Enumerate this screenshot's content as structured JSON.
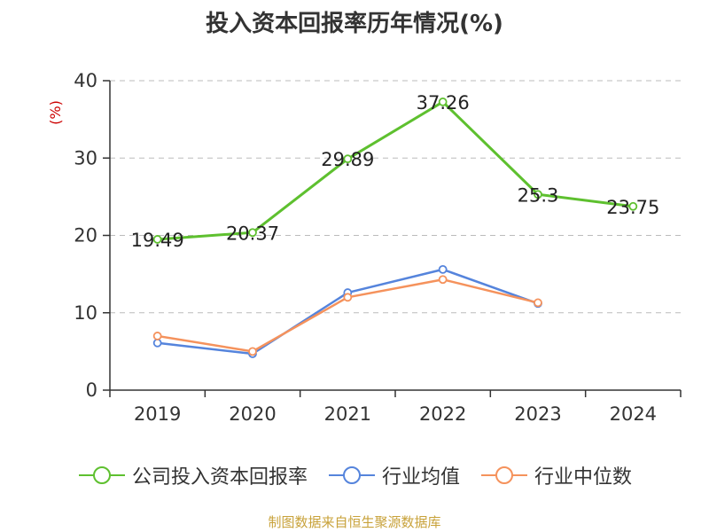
{
  "title": "投入资本回报率历年情况(%)",
  "footer": "制图数据来自恒生聚源数据库",
  "colors": {
    "series0": "#5ec02f",
    "series1": "#5584dc",
    "series2": "#f5925c",
    "ylabel": "#cc0000",
    "grid": "#bbbbbb",
    "axis": "#333333"
  },
  "chart_data": {
    "type": "line",
    "title": "投入资本回报率历年情况(%)",
    "xlabel": "",
    "ylabel": "(%)",
    "ylim": [
      0,
      40
    ],
    "yticks": [
      "0",
      "10",
      "20",
      "30",
      "40"
    ],
    "categories": [
      "2019",
      "2020",
      "2021",
      "2022",
      "2023",
      "2024"
    ],
    "grid": true,
    "legend": "bottom",
    "series": [
      {
        "name": "公司投入资本回报率",
        "values": [
          19.49,
          20.37,
          29.89,
          37.26,
          25.3,
          23.75
        ],
        "labels": [
          "19.49",
          "20.37",
          "29.89",
          "37.26",
          "25.3",
          "23.75"
        ]
      },
      {
        "name": "行业均值",
        "values": [
          6.1,
          4.7,
          12.6,
          15.6,
          11.2,
          null
        ]
      },
      {
        "name": "行业中位数",
        "values": [
          7.0,
          5.0,
          12.0,
          14.3,
          11.3,
          null
        ]
      }
    ]
  }
}
